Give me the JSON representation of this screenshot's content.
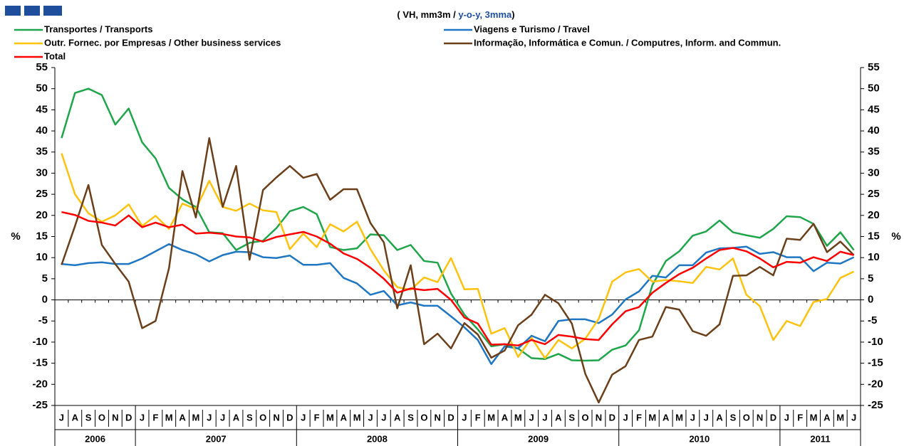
{
  "chart_data": {
    "type": "line",
    "subtitle_parts": [
      "( VH, mm3m / ",
      "y-o-y, 3mma",
      ")"
    ],
    "y_label": "%",
    "categories": [
      "J",
      "A",
      "S",
      "O",
      "N",
      "D",
      "J",
      "F",
      "M",
      "A",
      "M",
      "J",
      "J",
      "A",
      "S",
      "O",
      "N",
      "D",
      "J",
      "F",
      "M",
      "A",
      "M",
      "J",
      "J",
      "A",
      "S",
      "O",
      "N",
      "D",
      "J",
      "F",
      "M",
      "A",
      "M",
      "J",
      "J",
      "A",
      "S",
      "O",
      "N",
      "D",
      "J",
      "F",
      "M",
      "A",
      "M",
      "J",
      "J",
      "A",
      "S",
      "O",
      "N",
      "D",
      "J",
      "F",
      "M",
      "A",
      "M",
      "J"
    ],
    "years": [
      "2006",
      "2007",
      "2008",
      "2009",
      "2010",
      "2011"
    ],
    "ylim": [
      -25,
      55
    ],
    "yticks": [
      -25,
      -20,
      -15,
      -10,
      -5,
      0,
      5,
      10,
      15,
      20,
      25,
      30,
      35,
      40,
      45,
      50,
      55
    ],
    "y2lim": [
      -25,
      55
    ],
    "y2ticks": [
      -25,
      -20,
      -15,
      -10,
      -5,
      0,
      5,
      10,
      15,
      20,
      25,
      30,
      35,
      40,
      45,
      50,
      55
    ],
    "series": [
      {
        "name": "Transportes / Transports",
        "color": "#1fa64a",
        "values": [
          38.3,
          49,
          50,
          48.5,
          41.5,
          45.3,
          37.3,
          33.5,
          26.5,
          23.8,
          22,
          16,
          15.8,
          11.8,
          13.5,
          14,
          17,
          21,
          22,
          20.3,
          12.5,
          11.8,
          12.2,
          15.5,
          15.3,
          11.8,
          13,
          9.2,
          8.8,
          1.5,
          -3.5,
          -7,
          -11,
          -10.5,
          -11.5,
          -13.8,
          -14,
          -12.8,
          -14.3,
          -14.4,
          -14.3,
          -11.8,
          -10.8,
          -7.2,
          3.5,
          9.2,
          11.5,
          15.2,
          16.2,
          18.8,
          16,
          15.3,
          14.7,
          16.8,
          19.8,
          19.6,
          18,
          12.8,
          16,
          11.8
        ]
      },
      {
        "name": "Viagens e Turismo / Travel",
        "color": "#1f77c4",
        "values": [
          8.5,
          8.2,
          8.7,
          8.9,
          8.5,
          8.5,
          9.8,
          11.5,
          13.2,
          11.8,
          10.8,
          9.1,
          10.6,
          11.4,
          11.3,
          10.1,
          9.9,
          10.5,
          8.3,
          8.3,
          8.7,
          5.2,
          3.9,
          1.2,
          2.1,
          -1.3,
          -0.6,
          -1.4,
          -1.4,
          -3.9,
          -6.5,
          -9.5,
          -15.2,
          -11,
          -11.5,
          -8.5,
          -9.8,
          -5,
          -4.6,
          -4.6,
          -5.5,
          -3.5,
          0.1,
          2,
          5.7,
          5.3,
          8.2,
          8.2,
          11.2,
          12.2,
          12.3,
          12.6,
          10.9,
          11.3,
          10.1,
          10.1,
          6.8,
          8.8,
          8.6,
          10.1
        ]
      },
      {
        "name": "Outr. Fornec. por Empresas / Other business services",
        "color": "#ffc20e",
        "values": [
          34.7,
          25,
          20.5,
          18.5,
          20,
          22.6,
          17.5,
          19.9,
          16.8,
          22.8,
          21.5,
          28.2,
          22,
          21.1,
          22.8,
          21.2,
          20.8,
          12,
          15.7,
          12.5,
          17.9,
          16.2,
          18.5,
          12,
          7,
          3,
          2.4,
          5.3,
          4.2,
          9.9,
          2.5,
          2.6,
          -8,
          -6.7,
          -13.5,
          -9,
          -13.8,
          -9.5,
          -11.5,
          -9.2,
          -4.5,
          4.3,
          6.5,
          7.3,
          4.3,
          4.7,
          4.4,
          4,
          7.8,
          7.2,
          9.8,
          1.2,
          -1.5,
          -9.5,
          -5,
          -6.2,
          -0.5,
          0.2,
          5.2,
          6.7
        ]
      },
      {
        "name": "Informação, Informática e Comun. / Computres, Inform. and Commun.",
        "color": "#6b3f1a",
        "values": [
          8.3,
          17.5,
          27.2,
          13,
          8.5,
          4.3,
          -6.7,
          -5,
          7.5,
          30.5,
          19.5,
          38.3,
          22,
          31.7,
          9.5,
          26,
          29,
          31.7,
          28.9,
          29.8,
          23.7,
          26.2,
          26.2,
          18.2,
          13.6,
          -2,
          8.2,
          -10.5,
          -8,
          -11.5,
          -5.5,
          -8.2,
          -13.7,
          -12,
          -6,
          -3.5,
          1.2,
          -0.8,
          -5.6,
          -17.5,
          -24.3,
          -17.7,
          -15.7,
          -9.5,
          -8.7,
          -1.7,
          -2.3,
          -7.4,
          -8.5,
          -5.8,
          5.7,
          5.8,
          7.8,
          5.8,
          14.5,
          14.2,
          18,
          11.3,
          13.8,
          10.6
        ]
      },
      {
        "name": "Total",
        "color": "#ff0000",
        "values": [
          20.8,
          20.1,
          18.7,
          18.3,
          17.6,
          20,
          17.2,
          18.3,
          17.2,
          17.8,
          15.7,
          15.9,
          15.6,
          15,
          14.8,
          13.8,
          14.9,
          15.5,
          16.1,
          15,
          13.3,
          11,
          9.7,
          7.6,
          5,
          1.7,
          2.7,
          2.3,
          2.6,
          0,
          -4.2,
          -5.6,
          -10.6,
          -10.5,
          -10.8,
          -9.5,
          -10.5,
          -8.3,
          -8.7,
          -9.3,
          -9.5,
          -5.8,
          -2.7,
          -1.7,
          1.7,
          4,
          6.1,
          7.6,
          9.8,
          11.8,
          12.3,
          11.5,
          9.8,
          7.7,
          9,
          8.8,
          10.1,
          9.2,
          11.4,
          10.6
        ]
      }
    ]
  }
}
